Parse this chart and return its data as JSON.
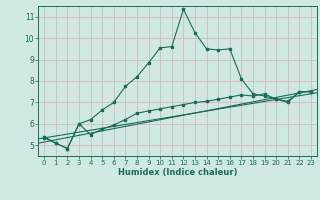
{
  "xlabel": "Humidex (Indice chaleur)",
  "bg_color": "#cfe8e4",
  "grid_color": "#d4bfbf",
  "line_color": "#1a6b5a",
  "xlim": [
    -0.5,
    23.5
  ],
  "ylim": [
    4.5,
    11.5
  ],
  "yticks": [
    5,
    6,
    7,
    8,
    9,
    10,
    11
  ],
  "xticks": [
    0,
    1,
    2,
    3,
    4,
    5,
    6,
    7,
    8,
    9,
    10,
    11,
    12,
    13,
    14,
    15,
    16,
    17,
    18,
    19,
    20,
    21,
    22,
    23
  ],
  "line1_x": [
    0,
    1,
    2,
    3,
    4,
    5,
    6,
    7,
    8,
    9,
    10,
    11,
    12,
    13,
    14,
    15,
    16,
    17,
    18,
    19,
    20,
    21,
    22,
    23
  ],
  "line1_y": [
    5.4,
    5.1,
    4.85,
    6.0,
    6.2,
    6.65,
    7.0,
    7.75,
    8.2,
    8.85,
    9.55,
    9.6,
    11.35,
    10.25,
    9.5,
    9.45,
    9.5,
    8.1,
    7.4,
    7.3,
    7.15,
    7.0,
    7.5,
    7.5
  ],
  "line2_x": [
    0,
    1,
    2,
    3,
    4,
    5,
    6,
    7,
    8,
    9,
    10,
    11,
    12,
    13,
    14,
    15,
    16,
    17,
    18,
    19,
    20,
    21,
    22,
    23
  ],
  "line2_y": [
    5.35,
    5.1,
    4.85,
    6.0,
    5.5,
    5.75,
    5.95,
    6.2,
    6.5,
    6.6,
    6.7,
    6.8,
    6.9,
    7.0,
    7.05,
    7.15,
    7.25,
    7.35,
    7.3,
    7.4,
    7.15,
    7.05,
    7.5,
    7.5
  ],
  "line3_y_start": 5.3,
  "line3_y_end": 7.45,
  "line4_y_start": 5.1,
  "line4_y_end": 7.6
}
